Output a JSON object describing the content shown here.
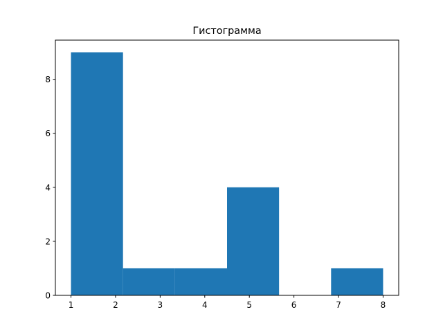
{
  "chart_data": {
    "type": "bar",
    "subtype": "histogram",
    "title": "Гистограмма",
    "xlabel": "",
    "ylabel": "",
    "bin_edges": [
      1,
      2.1667,
      3.3333,
      4.5,
      5.6667,
      6.8333,
      8
    ],
    "counts": [
      9,
      1,
      1,
      4,
      0,
      1
    ],
    "xlim": [
      0.65,
      8.35
    ],
    "ylim": [
      0,
      9.45
    ],
    "xticks": [
      1,
      2,
      3,
      4,
      5,
      6,
      7,
      8
    ],
    "yticks": [
      0,
      2,
      4,
      6,
      8
    ],
    "grid": false,
    "bar_color": "#1f77b4"
  }
}
